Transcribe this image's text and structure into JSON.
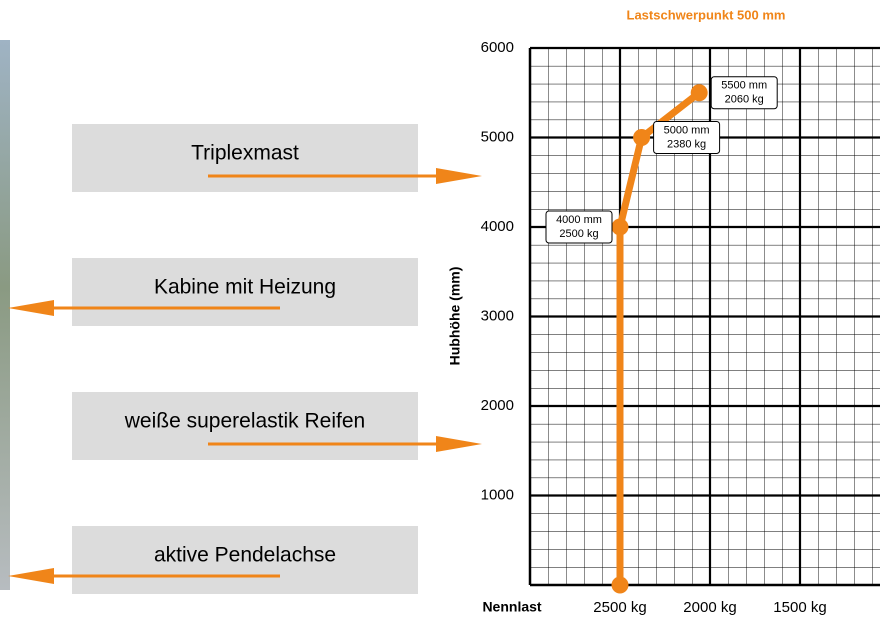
{
  "callouts": [
    {
      "text": "Triplexmast",
      "direction": "right"
    },
    {
      "text": "Kabine mit Heizung",
      "direction": "left"
    },
    {
      "text": "weiße superelastik Reifen",
      "direction": "right"
    },
    {
      "text": "aktive Pendelachse",
      "direction": "left"
    }
  ],
  "chart_data": {
    "type": "line",
    "title": "Lastschwerpunkt 500 mm",
    "x_label": "Nennlast",
    "y_label": "Hubhöhe (mm)",
    "x": [
      2500,
      2500,
      2380,
      2060
    ],
    "series": [
      {
        "color": "#f08519",
        "values": [
          0,
          4000,
          5000,
          5500
        ]
      }
    ],
    "point_labels": [
      null,
      [
        "4000 mm",
        "2500 kg"
      ],
      [
        "5000 mm",
        "2380 kg"
      ],
      [
        "5500 mm",
        "2060 kg"
      ]
    ],
    "xlim": [
      3000,
      1000
    ],
    "ylim": [
      0,
      6000
    ],
    "xticks": [
      {
        "value": 2500,
        "label": "2500 kg"
      },
      {
        "value": 2000,
        "label": "2000 kg"
      },
      {
        "value": 1500,
        "label": "1500 kg"
      }
    ],
    "yticks": [
      1000,
      2000,
      3000,
      4000,
      5000,
      6000
    ],
    "grid": true
  }
}
